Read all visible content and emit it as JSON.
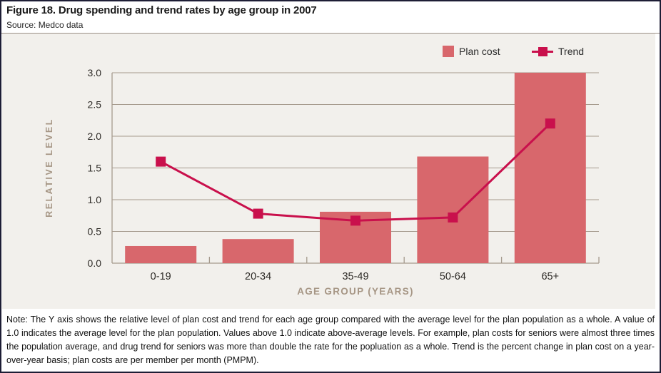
{
  "header": {
    "title": "Figure 18. Drug spending and trend rates by age group in 2007",
    "source": "Source: Medco data"
  },
  "legend": {
    "plan_cost_label": "Plan cost",
    "trend_label": "Trend"
  },
  "chart_data": {
    "type": "bar+line",
    "categories": [
      "0-19",
      "20-34",
      "35-49",
      "50-64",
      "65+"
    ],
    "series": [
      {
        "name": "Plan cost",
        "type": "bar",
        "values": [
          0.27,
          0.38,
          0.81,
          1.68,
          3.0
        ]
      },
      {
        "name": "Trend",
        "type": "line",
        "values": [
          1.6,
          0.78,
          0.67,
          0.72,
          2.2
        ]
      }
    ],
    "xlabel": "AGE GROUP (YEARS)",
    "ylabel": "RELATIVE LEVEL",
    "ylim": [
      0,
      3.0
    ],
    "ytick_step": 0.5,
    "yticks": [
      "0.0",
      "0.5",
      "1.0",
      "1.5",
      "2.0",
      "2.5",
      "3.0"
    ],
    "grid": true,
    "legend_position": "top-right"
  },
  "note": "Note: The Y axis shows the relative level of plan cost and trend for each age group compared with the average level for the plan population as a whole. A value of 1.0 indicates the average level for the plan population. Values above 1.0 indicate above-average levels. For example, plan costs for seniors were almost three times the population average, and drug trend for seniors was more than double the rate for the popluation as a whole. Trend is the percent change in plan cost on a year-over-year basis; plan costs are per member per month (PMPM).",
  "colors": {
    "bar": "#d8676c",
    "line": "#c9104c",
    "panel_bg": "#f2f0ec",
    "grid": "#a59a8d",
    "rule": "#9a8f85",
    "border": "#1d1d35",
    "axis_title_text": "#a69685",
    "tick_text": "#2e2b27"
  }
}
